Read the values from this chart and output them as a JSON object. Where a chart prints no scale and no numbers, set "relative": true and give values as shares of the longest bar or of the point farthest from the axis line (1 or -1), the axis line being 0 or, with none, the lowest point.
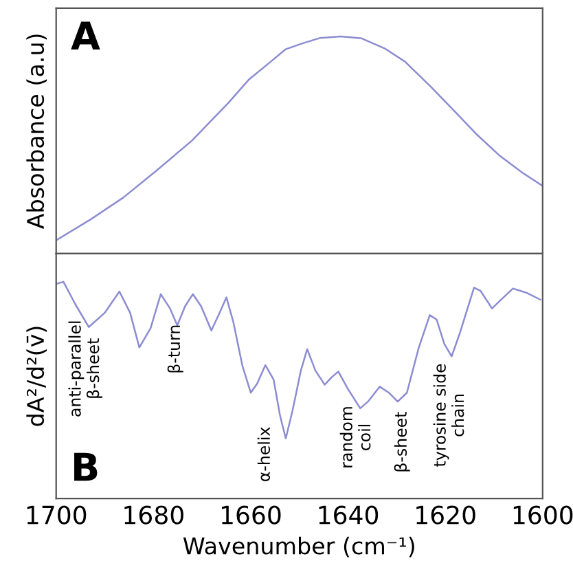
{
  "chart_data": [
    {
      "type": "line",
      "title": "A",
      "ylabel": "Absorbance (a.u)",
      "relative": true,
      "xlim": [
        1700,
        1600
      ],
      "xticks": [
        1700,
        1680,
        1660,
        1640,
        1620,
        1600
      ],
      "tick_labels": false,
      "grid": false,
      "legend": false,
      "series": [
        {
          "color": "#8c8cd2",
          "x": [
            1700,
            1692.8,
            1686.2,
            1679.6,
            1672.1,
            1664.6,
            1660.3,
            1656.1,
            1652.8,
            1649.5,
            1645.7,
            1641.5,
            1637.2,
            1632.5,
            1628.3,
            1623.1,
            1618.4,
            1613.7,
            1609.0,
            1604.2,
            1600
          ],
          "values": [
            0.061,
            0.159,
            0.258,
            0.378,
            0.52,
            0.694,
            0.803,
            0.88,
            0.941,
            0.967,
            0.993,
            1.0,
            0.991,
            0.945,
            0.884,
            0.771,
            0.662,
            0.552,
            0.454,
            0.373,
            0.312
          ]
        }
      ]
    },
    {
      "type": "line",
      "title": "B",
      "ylabel": "dA²/d²(v̄)",
      "xlabel": "Wavenumber (cm⁻¹)",
      "relative": true,
      "xlim": [
        1700,
        1600
      ],
      "xticks": [
        1700,
        1680,
        1660,
        1640,
        1620,
        1600
      ],
      "tick_labels": "x",
      "grid": false,
      "legend": false,
      "series": [
        {
          "color": "#8c8cd2",
          "x": [
            1700,
            1698.5,
            1696.1,
            1693.3,
            1690.0,
            1687.0,
            1684.8,
            1682.9,
            1680.6,
            1678.5,
            1676.6,
            1675.1,
            1673.5,
            1671.9,
            1670.2,
            1668.1,
            1666.4,
            1665.0,
            1663.6,
            1661.7,
            1660.0,
            1658.7,
            1657.0,
            1655.3,
            1654.0,
            1652.8,
            1651.4,
            1649.7,
            1648.4,
            1646.7,
            1644.8,
            1643.4,
            1642.0,
            1640.1,
            1637.5,
            1635.9,
            1633.5,
            1631.6,
            1629.8,
            1627.9,
            1625.5,
            1623.2,
            1621.8,
            1620.2,
            1618.7,
            1617.0,
            1614.1,
            1612.8,
            1610.4,
            1608.5,
            1606.1,
            1603.3,
            1600.5
          ],
          "values": [
            0.99,
            1.0,
            0.898,
            0.791,
            0.857,
            0.955,
            0.857,
            0.697,
            0.785,
            0.943,
            0.877,
            0.799,
            0.887,
            0.943,
            0.887,
            0.775,
            0.857,
            0.928,
            0.816,
            0.611,
            0.488,
            0.529,
            0.615,
            0.549,
            0.385,
            0.277,
            0.406,
            0.59,
            0.689,
            0.59,
            0.525,
            0.559,
            0.586,
            0.508,
            0.416,
            0.447,
            0.516,
            0.488,
            0.447,
            0.488,
            0.693,
            0.846,
            0.826,
            0.713,
            0.656,
            0.764,
            0.973,
            0.959,
            0.877,
            0.918,
            0.969,
            0.949,
            0.918
          ]
        }
      ],
      "annotations": [
        "anti-parallel\nβ-sheet",
        "β-turn",
        "α-helix",
        "random\ncoil",
        "β-sheet",
        "tyrosine side\nchain"
      ]
    }
  ]
}
